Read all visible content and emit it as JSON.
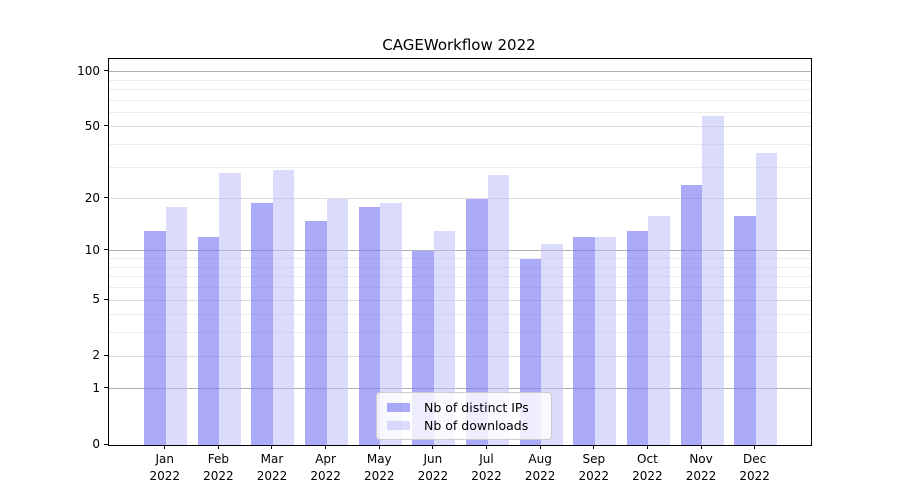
{
  "chart_data": {
    "type": "bar",
    "title": "CAGEWorkflow 2022",
    "year_label": "2022",
    "categories": [
      "Jan",
      "Feb",
      "Mar",
      "Apr",
      "May",
      "Jun",
      "Jul",
      "Aug",
      "Sep",
      "Oct",
      "Nov",
      "Dec"
    ],
    "series": [
      {
        "name": "Nb of distinct IPs",
        "color": "#7c7cf2",
        "alpha": 0.65,
        "values": [
          13,
          12,
          19,
          15,
          18,
          10,
          20,
          9,
          12,
          13,
          24,
          16
        ]
      },
      {
        "name": "Nb of downloads",
        "color": "#bebefa",
        "alpha": 0.55,
        "values": [
          18,
          28,
          29,
          20,
          19,
          13,
          27,
          11,
          12,
          16,
          57,
          36
        ]
      }
    ],
    "xlabel": "",
    "ylabel": "",
    "yscale": "log1p",
    "ylim": [
      0,
      117
    ],
    "y_ticks": [
      0,
      1,
      2,
      5,
      10,
      20,
      50,
      100
    ],
    "y_major_gridlines": [
      1,
      10,
      100
    ],
    "y_labeled_minor_gridlines": [
      2,
      5,
      20,
      50
    ],
    "y_minor_gridlines": [
      3,
      4,
      6,
      7,
      8,
      9,
      30,
      40,
      60,
      70,
      80,
      90
    ],
    "grid": true,
    "legend_position": "lower center"
  }
}
